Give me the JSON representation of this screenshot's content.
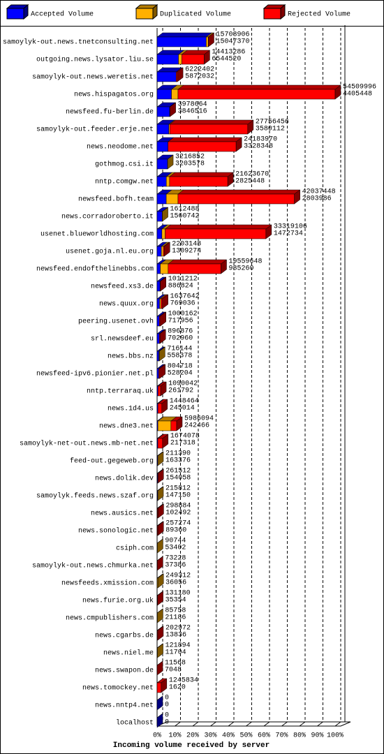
{
  "chart_data": {
    "type": "bar3d_stacked_horizontal",
    "xlabel": "Incoming volume received by server",
    "categories": [
      "samoylyk-out.news.tnetconsulting.net",
      "outgoing.news.lysator.liu.se",
      "samoylyk-out.news.weretis.net",
      "news.hispagatos.org",
      "newsfeed.fu-berlin.de",
      "samoylyk-out.feeder.erje.net",
      "news.neodome.net",
      "gothmog.csi.it",
      "nntp.comgw.net",
      "newsfeed.bofh.team",
      "news.corradoroberto.it",
      "usenet.blueworldhosting.com",
      "usenet.goja.nl.eu.org",
      "newsfeed.endofthelinebbs.com",
      "newsfeed.xs3.de",
      "news.quux.org",
      "peering.usenet.ovh",
      "srl.newsdeef.eu",
      "news.bbs.nz",
      "newsfeed-ipv6.pionier.net.pl",
      "nntp.terraraq.uk",
      "news.1d4.us",
      "news.dne3.net",
      "samoylyk-net-out.news.mb-net.net",
      "feed-out.gegeweb.org",
      "news.dolik.dev",
      "samoylyk.feeds.news.szaf.org",
      "news.ausics.net",
      "news.sonologic.net",
      "csiph.com",
      "samoylyk-out.news.chmurka.net",
      "newsfeeds.xmission.com",
      "news.furie.org.uk",
      "news.cmpublishers.com",
      "news.cgarbs.de",
      "news.niel.me",
      "news.swapon.de",
      "news.tomockey.net",
      "news.nntp4.net",
      "localhost"
    ],
    "totals": [
      15708906,
      14413286,
      6222402,
      54509996,
      3978664,
      27756456,
      24183970,
      3216852,
      21623670,
      42037448,
      1612488,
      33319106,
      2203148,
      19559648,
      1011212,
      1637642,
      1000162,
      896876,
      716144,
      804718,
      1090042,
      1448464,
      5986094,
      1674078,
      211390,
      261512,
      215812,
      298884,
      257274,
      90744,
      73228,
      249312,
      131180,
      85758,
      202972,
      121894,
      11568,
      1245834,
      0,
      0
    ],
    "series": [
      {
        "name": "Accepted Volume",
        "color": "#0000ff",
        "values": [
          15047370,
          6544520,
          5872032,
          4405448,
          3846516,
          3580112,
          3328348,
          3203578,
          2825448,
          2803986,
          1560742,
          1472734,
          1309274,
          985260,
          886824,
          769036,
          717956,
          702960,
          558378,
          528204,
          261792,
          245014,
          242466,
          217318,
          163376,
          154058,
          147150,
          102492,
          89360,
          53402,
          37386,
          36056,
          35354,
          21186,
          13836,
          11704,
          7048,
          1620,
          0,
          0
        ]
      },
      {
        "name": "Duplicated Volume",
        "color": "#ffb000",
        "values": [
          600000,
          1000000,
          0,
          2000000,
          0,
          300000,
          0,
          13274,
          1000000,
          3600000,
          51746,
          1000000,
          600000,
          2400000,
          0,
          400000,
          0,
          0,
          157766,
          0,
          0,
          0,
          4000000,
          0,
          48014,
          0,
          68662,
          0,
          0,
          37342,
          0,
          213256,
          0,
          64572,
          0,
          110190,
          0,
          0,
          0,
          0
        ]
      },
      {
        "name": "Rejected Volume",
        "color": "#ff0000",
        "values": [
          61536,
          6868766,
          350370,
          48104548,
          132148,
          23876344,
          20855622,
          0,
          17798222,
          35633462,
          0,
          30846372,
          293874,
          16174388,
          124388,
          468606,
          282206,
          193916,
          0,
          276514,
          828250,
          1203450,
          1743628,
          1456760,
          0,
          107454,
          0,
          196392,
          167914,
          0,
          35842,
          0,
          95826,
          0,
          189136,
          0,
          4520,
          1244214,
          0,
          0
        ]
      }
    ],
    "xlim": [
      0,
      54509996
    ],
    "xticks": [
      {
        "value": 0,
        "label": "0%"
      },
      {
        "value": 5450999.6,
        "label": "10%"
      },
      {
        "value": 10901999.2,
        "label": "20%"
      },
      {
        "value": 16352998.8,
        "label": "30%"
      },
      {
        "value": 21803998.4,
        "label": "40%"
      },
      {
        "value": 27254998,
        "label": "50%"
      },
      {
        "value": 32705997.6,
        "label": "60%"
      },
      {
        "value": 38156997.2,
        "label": "70%"
      },
      {
        "value": 43607996.8,
        "label": "80%"
      },
      {
        "value": 49058996.4,
        "label": "90%"
      },
      {
        "value": 54509996,
        "label": "100%"
      }
    ],
    "grid": true
  }
}
